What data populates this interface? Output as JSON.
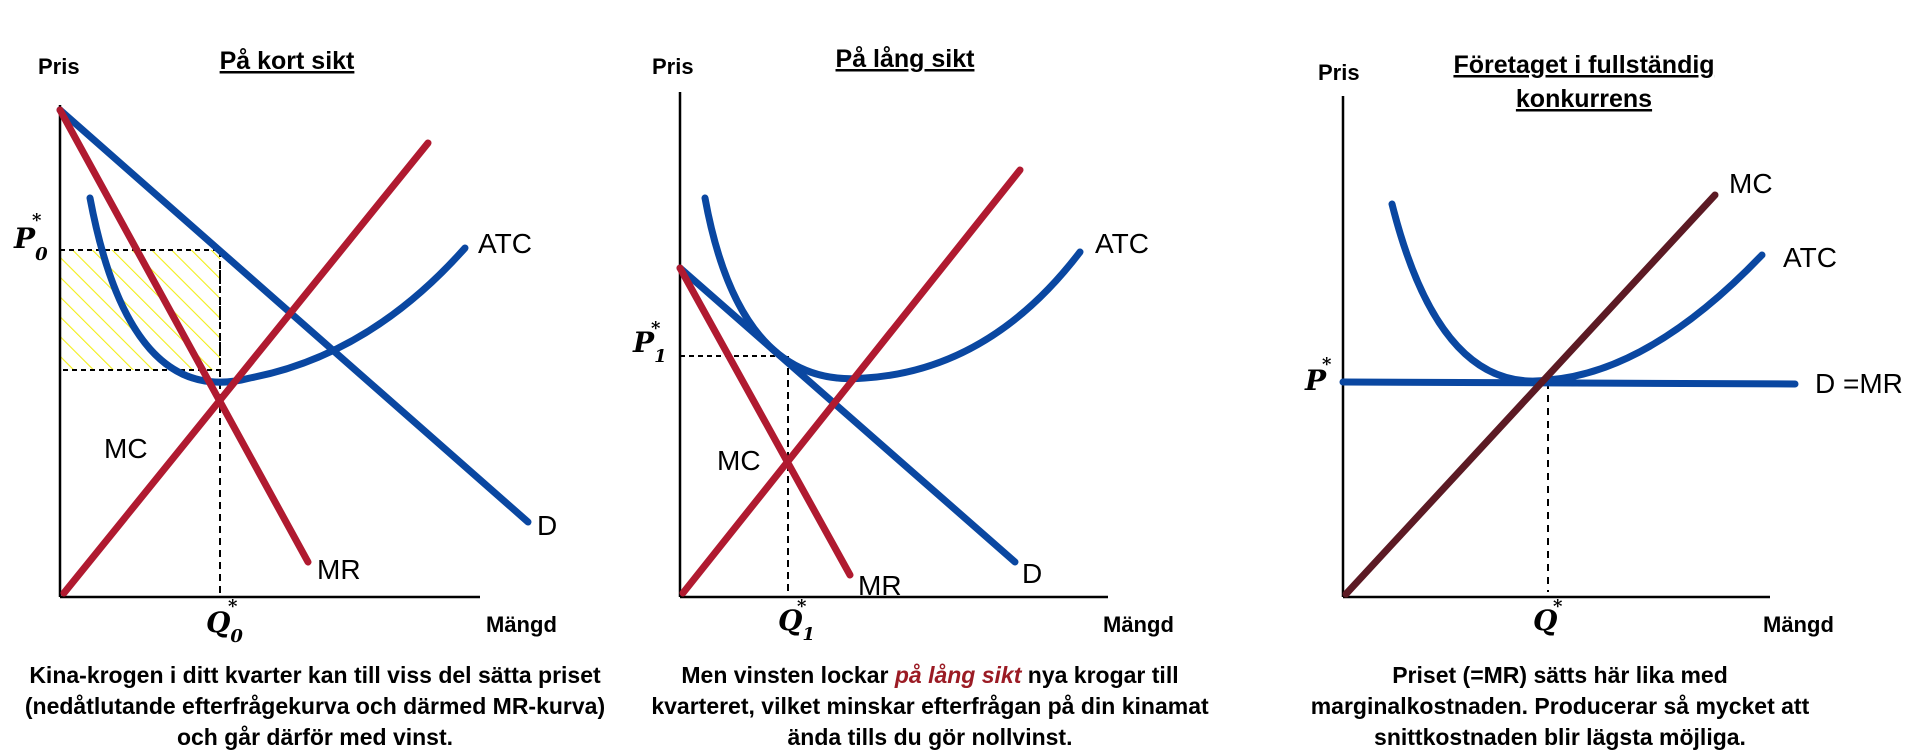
{
  "colors": {
    "blue": "#0a47a1",
    "red": "#b01a30",
    "dark_red": "#5c1a24",
    "hatch": "#f2ee1a"
  },
  "panels": [
    {
      "title": "På kort sikt",
      "y_axis": "Pris",
      "x_axis": "Mängd",
      "price_label": "P",
      "price_sub": "0",
      "qty_label": "Q",
      "qty_sub": "0",
      "curves": {
        "atc": "ATC",
        "mc": "MC",
        "mr": "MR",
        "d": "D"
      },
      "caption": "Kina-krogen i ditt kvarter kan till viss del sätta priset (nedåtlutande efterfrågekurva och därmed MR-kurva) och går därför med vinst."
    },
    {
      "title": "På lång sikt",
      "y_axis": "Pris",
      "x_axis": "Mängd",
      "price_label": "P",
      "price_sub": "1",
      "qty_label": "Q",
      "qty_sub": "1",
      "curves": {
        "atc": "ATC",
        "mc": "MC",
        "mr": "MR",
        "d": "D"
      },
      "caption_pre": "Men vinsten lockar ",
      "caption_em": "på lång sikt",
      "caption_post": " nya krogar till kvarteret, vilket minskar efterfrågan på din kinamat ända tills du gör nollvinst."
    },
    {
      "title_line1": "Företaget i fullständig",
      "title_line2": "konkurrens",
      "y_axis": "Pris",
      "x_axis": "Mängd",
      "price_label": "P",
      "qty_label": "Q",
      "curves": {
        "atc": "ATC",
        "mc": "MC",
        "dmr": "D =MR"
      },
      "caption": "Priset (=MR) sätts här lika med marginalkostnaden. Producerar så mycket att snittkostnaden blir lägsta möjliga."
    }
  ]
}
